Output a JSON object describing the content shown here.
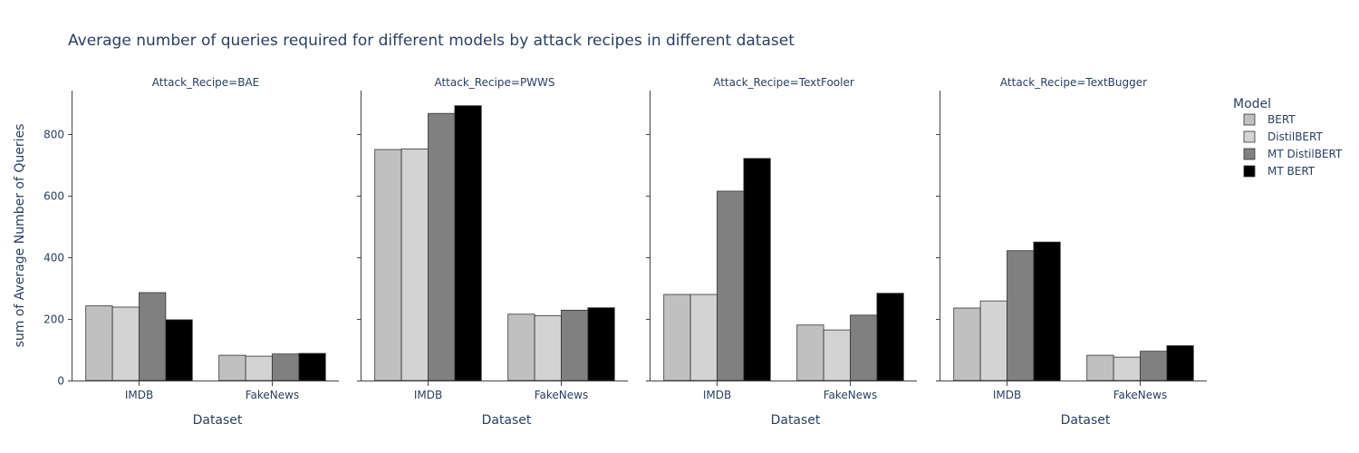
{
  "chart_data": {
    "type": "bar",
    "title": "Average number of queries required for different models by attack recipes in different dataset",
    "xlabel": "Dataset",
    "ylabel": "sum of Average Number of Queries",
    "ylim": [
      0,
      940
    ],
    "yticks": [
      0,
      200,
      400,
      600,
      800
    ],
    "categories": [
      "IMDB",
      "FakeNews"
    ],
    "legend": {
      "title": "Model",
      "placement": "right"
    },
    "series_meta": [
      {
        "name": "BERT",
        "color": "#c0c0c0"
      },
      {
        "name": "DistilBERT",
        "color": "#d3d3d3"
      },
      {
        "name": "MT DistilBERT",
        "color": "#808080"
      },
      {
        "name": "MT BERT",
        "color": "#000000"
      }
    ],
    "facets": [
      {
        "label": "Attack_Recipe=BAE",
        "series": [
          {
            "name": "BERT",
            "values": [
              242,
              82
            ]
          },
          {
            "name": "DistilBERT",
            "values": [
              238,
              79
            ]
          },
          {
            "name": "MT DistilBERT",
            "values": [
              285,
              86
            ]
          },
          {
            "name": "MT BERT",
            "values": [
              197,
              88
            ]
          }
        ]
      },
      {
        "label": "Attack_Recipe=PWWS",
        "series": [
          {
            "name": "BERT",
            "values": [
              749,
              215
            ]
          },
          {
            "name": "DistilBERT",
            "values": [
              751,
              210
            ]
          },
          {
            "name": "MT DistilBERT",
            "values": [
              866,
              228
            ]
          },
          {
            "name": "MT BERT",
            "values": [
              891,
              236
            ]
          }
        ]
      },
      {
        "label": "Attack_Recipe=TextFooler",
        "series": [
          {
            "name": "BERT",
            "values": [
              279,
              180
            ]
          },
          {
            "name": "DistilBERT",
            "values": [
              279,
              164
            ]
          },
          {
            "name": "MT DistilBERT",
            "values": [
              614,
              212
            ]
          },
          {
            "name": "MT BERT",
            "values": [
              720,
              283
            ]
          }
        ]
      },
      {
        "label": "Attack_Recipe=TextBugger",
        "series": [
          {
            "name": "BERT",
            "values": [
              235,
              82
            ]
          },
          {
            "name": "DistilBERT",
            "values": [
              258,
              76
            ]
          },
          {
            "name": "MT DistilBERT",
            "values": [
              421,
              95
            ]
          },
          {
            "name": "MT BERT",
            "values": [
              449,
              113
            ]
          }
        ]
      }
    ]
  }
}
